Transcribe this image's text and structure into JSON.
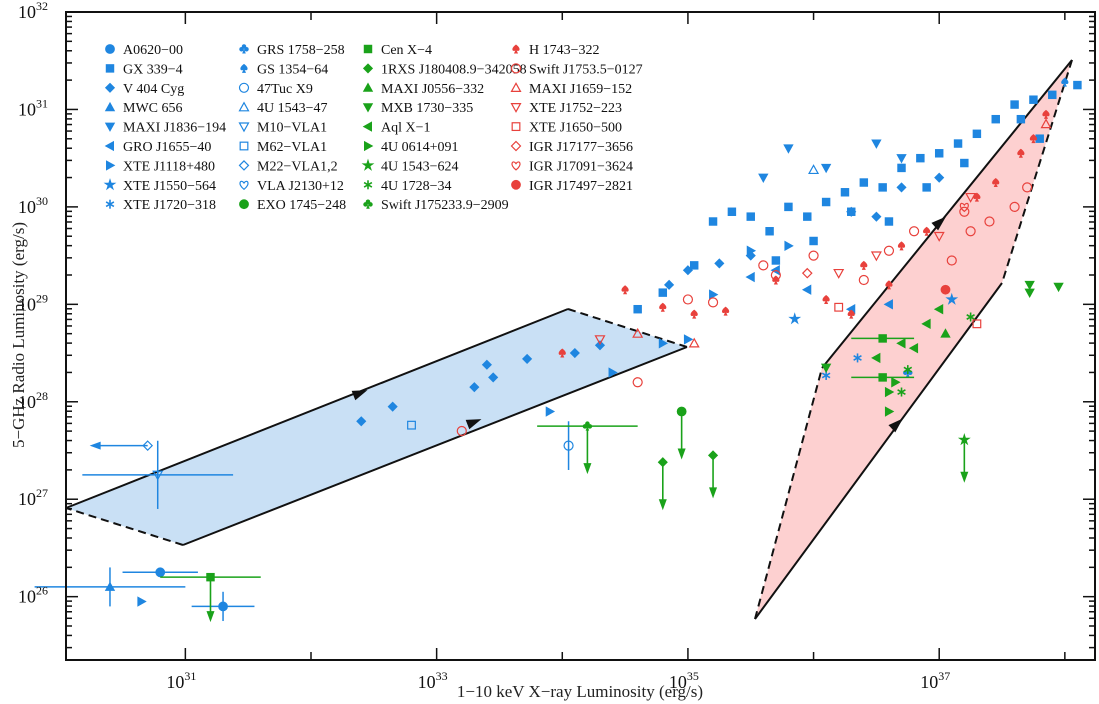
{
  "chart_data": {
    "type": "scatter",
    "title": "",
    "xlabel": "1−10 keV X−ray Luminosity (erg/s)",
    "ylabel": "5−GHz Radio Luminosity (erg/s)",
    "xscale": "log",
    "yscale": "log",
    "xlim_log10": [
      30.05,
      38.24
    ],
    "ylim_log10": [
      25.35,
      32
    ],
    "x_ticks": [
      {
        "exp": "31",
        "log": 31
      },
      {
        "exp": "33",
        "log": 33
      },
      {
        "exp": "35",
        "log": 35
      },
      {
        "exp": "37",
        "log": 37
      }
    ],
    "y_ticks": [
      {
        "exp": "32",
        "log": 32
      },
      {
        "exp": "31",
        "log": 31
      },
      {
        "exp": "30",
        "log": 30
      },
      {
        "exp": "29",
        "log": 29
      },
      {
        "exp": "28",
        "log": 28
      },
      {
        "exp": "27",
        "log": 27
      },
      {
        "exp": "26",
        "log": 26
      }
    ],
    "tick_base": "10",
    "grid": false,
    "legend_position": "top-left",
    "colors": {
      "black_hole": "#1f86e0",
      "neutron_star": "#1aa21a",
      "candidate": "#e8413c",
      "nsdark": "#3c8c14",
      "region_blue": "#c9e0f5",
      "region_red": "#fdd0d0"
    },
    "regions": [
      {
        "name": "blue-region",
        "fill": "#c9e0f5",
        "vertices_log": [
          [
            30.05,
            27.0
          ],
          [
            34.07,
            29.04
          ],
          [
            35.02,
            28.65
          ],
          [
            31.0,
            26.62
          ]
        ],
        "edge_styles": [
          "solid",
          "dashed",
          "solid",
          "dashed"
        ],
        "arrows_log": [
          [
            32.4,
            27.82
          ],
          [
            33.4,
            27.66
          ]
        ]
      },
      {
        "name": "red-region",
        "fill": "#fdd0d0",
        "vertices_log": [
          [
            36.12,
            26.07
          ],
          [
            36.66,
            28.7
          ],
          [
            38.66,
            31.86
          ],
          [
            38.1,
            29.2
          ]
        ],
        "actual_vertices_log": [
          [
            35.56,
            26.0
          ],
          [
            36.1,
            28.57
          ],
          [
            38.1,
            31.72
          ],
          [
            37.54,
            29.2
          ]
        ],
        "edge_styles": [
          "dashed",
          "solid",
          "dashed",
          "solid"
        ],
        "arrows_log": [
          [
            37.05,
            30.0
          ],
          [
            36.75,
            27.7
          ]
        ]
      }
    ],
    "series": [
      {
        "name": "A0620−00",
        "color": "#1f86e0",
        "marker": "circle",
        "filled": true,
        "points": [
          [
            30.8,
            26.25,
            0.3,
            0
          ],
          [
            31.3,
            25.9,
            0.25,
            0.15
          ]
        ]
      },
      {
        "name": "GX 339−4",
        "color": "#1f86e0",
        "marker": "square",
        "filled": true,
        "points": [
          [
            35.2,
            29.85
          ],
          [
            35.35,
            29.95
          ],
          [
            35.5,
            29.9
          ],
          [
            35.65,
            29.75
          ],
          [
            35.8,
            30.0
          ],
          [
            35.95,
            29.9
          ],
          [
            36.1,
            30.05
          ],
          [
            36.25,
            30.15
          ],
          [
            36.4,
            30.25
          ],
          [
            36.55,
            30.2
          ],
          [
            36.7,
            30.4
          ],
          [
            36.85,
            30.5
          ],
          [
            37.0,
            30.55
          ],
          [
            37.15,
            30.65
          ],
          [
            37.3,
            30.75
          ],
          [
            37.45,
            30.9
          ],
          [
            37.6,
            31.05
          ],
          [
            37.75,
            31.1
          ],
          [
            37.9,
            31.15
          ],
          [
            36.3,
            29.95
          ],
          [
            36.0,
            29.65
          ],
          [
            35.7,
            29.45
          ],
          [
            36.6,
            29.85
          ],
          [
            36.9,
            30.2
          ],
          [
            37.2,
            30.45
          ],
          [
            37.65,
            30.9
          ],
          [
            37.8,
            30.7
          ],
          [
            34.8,
            29.12
          ],
          [
            34.6,
            28.95
          ],
          [
            35.05,
            29.4
          ],
          [
            38.1,
            31.25
          ]
        ]
      },
      {
        "name": "V 404 Cyg",
        "color": "#1f86e0",
        "marker": "diamond",
        "filled": true,
        "points": [
          [
            32.65,
            27.95
          ],
          [
            32.4,
            27.8
          ],
          [
            33.3,
            28.15
          ],
          [
            33.4,
            28.38
          ],
          [
            33.45,
            28.25
          ],
          [
            33.72,
            28.44
          ],
          [
            34.1,
            28.5
          ],
          [
            34.3,
            28.58
          ],
          [
            34.85,
            29.2
          ],
          [
            35.0,
            29.35
          ],
          [
            35.25,
            29.42
          ],
          [
            35.5,
            29.5
          ],
          [
            36.3,
            29.95
          ],
          [
            36.5,
            29.9
          ],
          [
            36.7,
            30.2
          ],
          [
            37.0,
            30.3
          ]
        ]
      },
      {
        "name": "MWC 656",
        "color": "#1f86e0",
        "marker": "triangle-up",
        "filled": true,
        "points": [
          [
            30.4,
            26.1,
            0.6,
            0.2
          ]
        ]
      },
      {
        "name": "MAXI J1836−194",
        "color": "#1f86e0",
        "marker": "triangle-down",
        "filled": true,
        "points": [
          [
            36.5,
            30.65
          ],
          [
            36.7,
            30.5
          ],
          [
            36.1,
            30.4
          ],
          [
            35.6,
            30.3
          ],
          [
            35.8,
            30.6
          ]
        ]
      },
      {
        "name": "GRO J1655−40",
        "color": "#1f86e0",
        "marker": "triangle-left",
        "filled": true,
        "points": [
          [
            35.5,
            29.28
          ],
          [
            35.7,
            29.35
          ],
          [
            35.95,
            29.15
          ],
          [
            36.3,
            28.95
          ],
          [
            36.6,
            29.0
          ]
        ]
      },
      {
        "name": "XTE J1118+480",
        "color": "#1f86e0",
        "marker": "triangle-right",
        "filled": true,
        "points": [
          [
            30.65,
            25.95
          ],
          [
            33.9,
            27.9
          ],
          [
            34.4,
            28.3
          ],
          [
            34.8,
            28.6
          ],
          [
            35.0,
            28.64
          ],
          [
            35.2,
            29.1
          ],
          [
            35.5,
            29.55
          ],
          [
            35.8,
            29.6
          ]
        ]
      },
      {
        "name": "XTE J1550−564",
        "color": "#1f86e0",
        "marker": "star",
        "filled": true,
        "points": [
          [
            35.85,
            28.85
          ],
          [
            37.1,
            29.05
          ]
        ]
      },
      {
        "name": "XTE J1720−318",
        "color": "#1f86e0",
        "marker": "asterisk",
        "filled": true,
        "points": [
          [
            36.35,
            28.45
          ],
          [
            36.1,
            28.27
          ]
        ]
      },
      {
        "name": "GRS 1758−258",
        "color": "#1f86e0",
        "marker": "club",
        "filled": true,
        "points": [
          [
            36.75,
            28.3
          ]
        ]
      },
      {
        "name": "GS 1354−64",
        "color": "#1f86e0",
        "marker": "spade",
        "filled": true,
        "points": [
          [
            38.0,
            31.28
          ],
          [
            38.3,
            31.28
          ],
          [
            38.55,
            31.28
          ]
        ]
      },
      {
        "name": "47Tuc X9",
        "color": "#1f86e0",
        "marker": "circle",
        "filled": false,
        "points": [
          [
            34.05,
            27.55,
            0,
            0.25
          ]
        ]
      },
      {
        "name": "4U 1543−47",
        "color": "#1f86e0",
        "marker": "triangle-up",
        "filled": false,
        "points": [
          [
            36.0,
            30.38
          ]
        ]
      },
      {
        "name": "M10−VLA1",
        "color": "#1f86e0",
        "marker": "triangle-down",
        "filled": false,
        "points": [
          [
            30.78,
            27.25,
            0.6,
            0.35
          ]
        ]
      },
      {
        "name": "M62−VLA1",
        "color": "#1f86e0",
        "marker": "square",
        "filled": false,
        "points": [
          [
            32.8,
            27.76
          ]
        ]
      },
      {
        "name": "M22−VLA1,2",
        "color": "#1f86e0",
        "marker": "diamond",
        "filled": false,
        "points": [
          [
            30.7,
            27.55
          ]
        ]
      },
      {
        "name": "VLA J2130+12",
        "color": "#1f86e0",
        "marker": "heart",
        "filled": false,
        "points": []
      },
      {
        "name": "EXO 1745−248",
        "color": "#1aa21a",
        "marker": "circle",
        "filled": true,
        "points": [
          [
            34.95,
            27.9
          ]
        ]
      },
      {
        "name": "Cen X−4",
        "color": "#1aa21a",
        "marker": "square",
        "filled": true,
        "points": [
          [
            31.2,
            26.2,
            0.4,
            0
          ],
          [
            36.55,
            28.65,
            0.25,
            0
          ],
          [
            36.55,
            28.25,
            0.25,
            0
          ]
        ]
      },
      {
        "name": "1RXS J180408.9−342058",
        "color": "#1aa21a",
        "marker": "diamond",
        "filled": true,
        "points": [
          [
            34.8,
            27.38
          ],
          [
            35.2,
            27.45
          ]
        ]
      },
      {
        "name": "MAXI J0556−332",
        "color": "#1aa21a",
        "marker": "triangle-up",
        "filled": true,
        "points": [
          [
            37.05,
            28.7
          ]
        ]
      },
      {
        "name": "MXB 1730−335",
        "color": "#1aa21a",
        "marker": "triangle-down",
        "filled": true,
        "points": [
          [
            37.72,
            29.2
          ],
          [
            37.72,
            29.12
          ],
          [
            37.95,
            29.18
          ],
          [
            36.1,
            28.35
          ]
        ]
      },
      {
        "name": "Aql X−1",
        "color": "#1aa21a",
        "marker": "triangle-left",
        "filled": true,
        "points": [
          [
            36.5,
            28.45
          ],
          [
            36.7,
            28.6
          ],
          [
            36.8,
            28.55
          ],
          [
            36.9,
            28.8
          ],
          [
            37.0,
            28.95
          ]
        ]
      },
      {
        "name": "4U 0614+091",
        "color": "#1aa21a",
        "marker": "triangle-right",
        "filled": true,
        "points": [
          [
            36.6,
            28.1
          ],
          [
            36.6,
            27.9
          ],
          [
            36.65,
            28.2
          ]
        ]
      },
      {
        "name": "4U 1543−624",
        "color": "#1aa21a",
        "marker": "star",
        "filled": true,
        "points": [
          [
            37.2,
            27.61
          ]
        ]
      },
      {
        "name": "4U 1728−34",
        "color": "#1aa21a",
        "marker": "asterisk",
        "filled": true,
        "points": [
          [
            36.75,
            28.33
          ],
          [
            36.7,
            28.1
          ],
          [
            37.25,
            28.87
          ]
        ]
      },
      {
        "name": "Swift J175233.9−2909",
        "color": "#1aa21a",
        "marker": "club",
        "filled": true,
        "points": [
          [
            34.2,
            27.75,
            0.4,
            0
          ]
        ]
      },
      {
        "name": "H 1743−322",
        "color": "#e8413c",
        "marker": "spade",
        "filled": true,
        "points": [
          [
            34.5,
            29.15
          ],
          [
            34.8,
            28.97
          ],
          [
            35.05,
            28.9
          ],
          [
            35.3,
            28.93
          ],
          [
            35.7,
            29.25
          ],
          [
            36.1,
            29.05
          ],
          [
            36.4,
            29.4
          ],
          [
            36.7,
            29.6
          ],
          [
            36.9,
            29.75
          ],
          [
            37.3,
            30.1
          ],
          [
            37.45,
            30.25
          ],
          [
            37.65,
            30.55
          ],
          [
            37.75,
            30.7
          ],
          [
            37.85,
            30.95
          ],
          [
            36.3,
            28.9
          ],
          [
            36.6,
            29.2
          ],
          [
            34.0,
            28.5
          ]
        ]
      },
      {
        "name": "Swift J1753.5−0127",
        "color": "#e8413c",
        "marker": "circle",
        "filled": false,
        "points": [
          [
            33.2,
            27.7
          ],
          [
            34.6,
            28.2
          ],
          [
            35.0,
            29.05
          ],
          [
            35.2,
            29.02
          ],
          [
            35.6,
            29.4
          ],
          [
            35.7,
            29.3
          ],
          [
            36.0,
            29.5
          ],
          [
            36.4,
            29.25
          ],
          [
            36.6,
            29.55
          ],
          [
            36.8,
            29.75
          ],
          [
            37.2,
            29.95
          ],
          [
            37.25,
            29.75
          ],
          [
            37.4,
            29.85
          ],
          [
            37.6,
            30.0
          ],
          [
            37.7,
            30.2
          ],
          [
            37.1,
            29.45
          ]
        ]
      },
      {
        "name": "MAXI J1659−152",
        "color": "#e8413c",
        "marker": "triangle-up",
        "filled": false,
        "points": [
          [
            34.6,
            28.7
          ],
          [
            35.05,
            28.6
          ],
          [
            37.85,
            30.85
          ]
        ]
      },
      {
        "name": "XTE J1752−223",
        "color": "#e8413c",
        "marker": "triangle-down",
        "filled": false,
        "points": [
          [
            34.3,
            28.64
          ],
          [
            36.2,
            29.32
          ],
          [
            36.5,
            29.5
          ],
          [
            37.0,
            29.7
          ],
          [
            37.25,
            30.1
          ]
        ]
      },
      {
        "name": "XTE J1650−500",
        "color": "#e8413c",
        "marker": "square",
        "filled": false,
        "points": [
          [
            36.2,
            28.97
          ],
          [
            37.3,
            28.8
          ]
        ]
      },
      {
        "name": "IGR J17177−3656",
        "color": "#e8413c",
        "marker": "diamond",
        "filled": false,
        "points": [
          [
            35.95,
            29.32
          ]
        ]
      },
      {
        "name": "IGR J17091−3624",
        "color": "#e8413c",
        "marker": "heart",
        "filled": false,
        "points": [
          [
            37.2,
            30.0
          ]
        ]
      },
      {
        "name": "IGR J17497−2821",
        "color": "#e8413c",
        "marker": "circle",
        "filled": true,
        "points": [
          [
            37.05,
            29.15
          ]
        ]
      }
    ]
  }
}
